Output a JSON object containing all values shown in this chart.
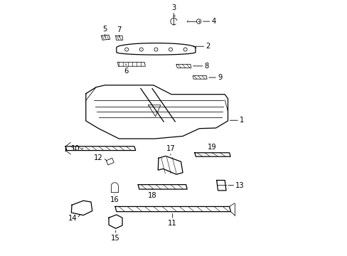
{
  "bg_color": "#ffffff",
  "line_color": "#000000",
  "label_color": "#000000"
}
